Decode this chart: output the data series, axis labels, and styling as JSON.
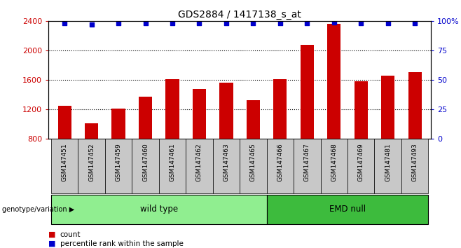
{
  "title": "GDS2884 / 1417138_s_at",
  "samples": [
    "GSM147451",
    "GSM147452",
    "GSM147459",
    "GSM147460",
    "GSM147461",
    "GSM147462",
    "GSM147463",
    "GSM147465",
    "GSM147466",
    "GSM147467",
    "GSM147468",
    "GSM147469",
    "GSM147481",
    "GSM147493"
  ],
  "counts": [
    1245,
    1010,
    1215,
    1370,
    1610,
    1480,
    1560,
    1330,
    1610,
    2080,
    2360,
    1580,
    1660,
    1710
  ],
  "percentile_ranks": [
    98,
    97,
    98,
    98,
    98,
    98,
    98,
    98,
    98,
    98,
    99,
    98,
    98,
    98
  ],
  "bar_color": "#cc0000",
  "dot_color": "#0000cc",
  "ylim_left": [
    800,
    2400
  ],
  "yticks_left": [
    800,
    1200,
    1600,
    2000,
    2400
  ],
  "ylim_right": [
    0,
    100
  ],
  "yticks_right": [
    0,
    25,
    50,
    75,
    100
  ],
  "yright_labels": [
    "0",
    "25",
    "50",
    "75",
    "100%"
  ],
  "groups": [
    {
      "label": "wild type",
      "start": 0,
      "end": 7,
      "color": "#90ee90"
    },
    {
      "label": "EMD null",
      "start": 8,
      "end": 13,
      "color": "#3dbb3d"
    }
  ],
  "group_row_label": "genotype/variation",
  "legend_count_label": "count",
  "legend_percentile_label": "percentile rank within the sample",
  "background_color": "#ffffff",
  "plot_bg_color": "#ffffff",
  "tick_label_bg": "#c8c8c8",
  "bar_width": 0.5,
  "gridline_values": [
    1200,
    1600,
    2000
  ]
}
